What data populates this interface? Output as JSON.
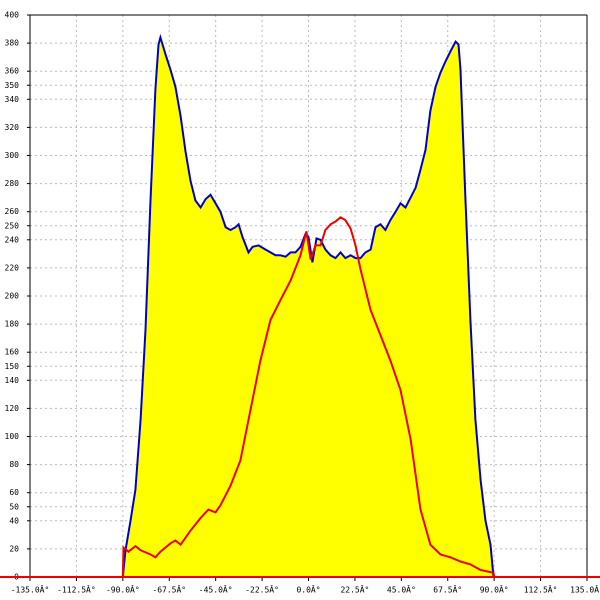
{
  "chart_data": {
    "type": "area",
    "xlim": [
      -135,
      135
    ],
    "ylim": [
      0,
      400
    ],
    "xticks": [
      {
        "value": -135,
        "label": "-135.0Â°"
      },
      {
        "value": -112.5,
        "label": "-112.5Â°"
      },
      {
        "value": -90,
        "label": "-90.0Â°"
      },
      {
        "value": -67.5,
        "label": "-67.5Â°"
      },
      {
        "value": -45,
        "label": "-45.0Â°"
      },
      {
        "value": -22.5,
        "label": "-22.5Â°"
      },
      {
        "value": 0,
        "label": "0.0Â°"
      },
      {
        "value": 22.5,
        "label": "22.5Â°"
      },
      {
        "value": 45,
        "label": "45.0Â°"
      },
      {
        "value": 67.5,
        "label": "67.5Â°"
      },
      {
        "value": 90,
        "label": "90.0Â°"
      },
      {
        "value": 112.5,
        "label": "112.5Â°"
      },
      {
        "value": 135,
        "label": "135.0Â°"
      }
    ],
    "yticks": [
      0,
      20,
      40,
      50,
      60,
      80,
      100,
      120,
      140,
      150,
      160,
      180,
      200,
      220,
      240,
      250,
      260,
      280,
      300,
      320,
      340,
      350,
      360,
      380,
      400
    ],
    "grid": true,
    "series": [
      {
        "color": "#0000cc",
        "fill": "#ffff00",
        "x": [
          -90,
          -88.7,
          -86.3,
          -83.9,
          -81.4,
          -79,
          -76.6,
          -74.2,
          -72.7,
          -71.8,
          -69.3,
          -66.9,
          -64.5,
          -62,
          -59.6,
          -57.2,
          -54.8,
          -52.3,
          -49.9,
          -47.5,
          -45.1,
          -42.7,
          -40.2,
          -37.8,
          -35.4,
          -33.9,
          -32,
          -29.1,
          -27.1,
          -24.2,
          -20.8,
          -18.4,
          -16,
          -13.6,
          -11.1,
          -8.7,
          -6.3,
          -3.9,
          -1.5,
          0,
          1.9,
          3.9,
          5.8,
          8.2,
          10.7,
          13.1,
          15.5,
          17.9,
          20.4,
          22.8,
          25.2,
          27.6,
          30.1,
          32.5,
          34.9,
          37.3,
          39.7,
          42.2,
          44.6,
          47,
          49.5,
          51.9,
          54.3,
          56.7,
          59.1,
          61.6,
          64,
          66.4,
          68.8,
          71.3,
          72.7,
          73.7,
          74.6,
          76.1,
          78.5,
          80.9,
          83.4,
          85.8,
          88.2,
          89.7
        ],
        "values": [
          0,
          19,
          40,
          62,
          112,
          176,
          268,
          347,
          379,
          384,
          372,
          361,
          349,
          328,
          303,
          282,
          268,
          263,
          269,
          272,
          266,
          260,
          249,
          247,
          249,
          251,
          242,
          231,
          235,
          236,
          233,
          231,
          229,
          229,
          228,
          231,
          231,
          235,
          244,
          242,
          224,
          241,
          240,
          233,
          229,
          227,
          231,
          227,
          229,
          227,
          227,
          231,
          233,
          249,
          251,
          247,
          254,
          260,
          266,
          263,
          270,
          277,
          290,
          304,
          332,
          349,
          359,
          367,
          374,
          381,
          379,
          361,
          325,
          268,
          183,
          112,
          69,
          40,
          23,
          0
        ]
      },
      {
        "color": "#ee0000",
        "x": [
          -90,
          -89.7,
          -87.3,
          -83.9,
          -81.4,
          -76.6,
          -74.2,
          -71.8,
          -66.9,
          -64.5,
          -62,
          -57.2,
          -52.3,
          -48.5,
          -45.1,
          -42.7,
          -37.8,
          -33,
          -28.1,
          -23.3,
          -18.4,
          -13.6,
          -8.7,
          -3.9,
          -1,
          1,
          3.4,
          5.8,
          8.2,
          10.7,
          13.1,
          15.5,
          17.9,
          20.4,
          22.8,
          25.2,
          30.1,
          34.9,
          39.7,
          44.6,
          49.5,
          54.3,
          59.1,
          64,
          68.8,
          73.7,
          78.5,
          83.4,
          89.7,
          90
        ],
        "values": [
          0,
          21,
          18,
          22,
          19,
          16,
          14,
          18,
          24,
          26,
          23,
          33,
          42,
          48,
          46,
          51,
          65,
          83,
          119,
          154,
          183,
          197,
          211,
          229,
          246,
          226,
          236,
          236,
          247,
          251,
          253,
          256,
          254,
          248,
          236,
          219,
          190,
          172,
          154,
          133,
          98,
          48,
          23,
          16,
          14,
          11,
          9,
          5,
          3,
          0
        ]
      }
    ]
  }
}
